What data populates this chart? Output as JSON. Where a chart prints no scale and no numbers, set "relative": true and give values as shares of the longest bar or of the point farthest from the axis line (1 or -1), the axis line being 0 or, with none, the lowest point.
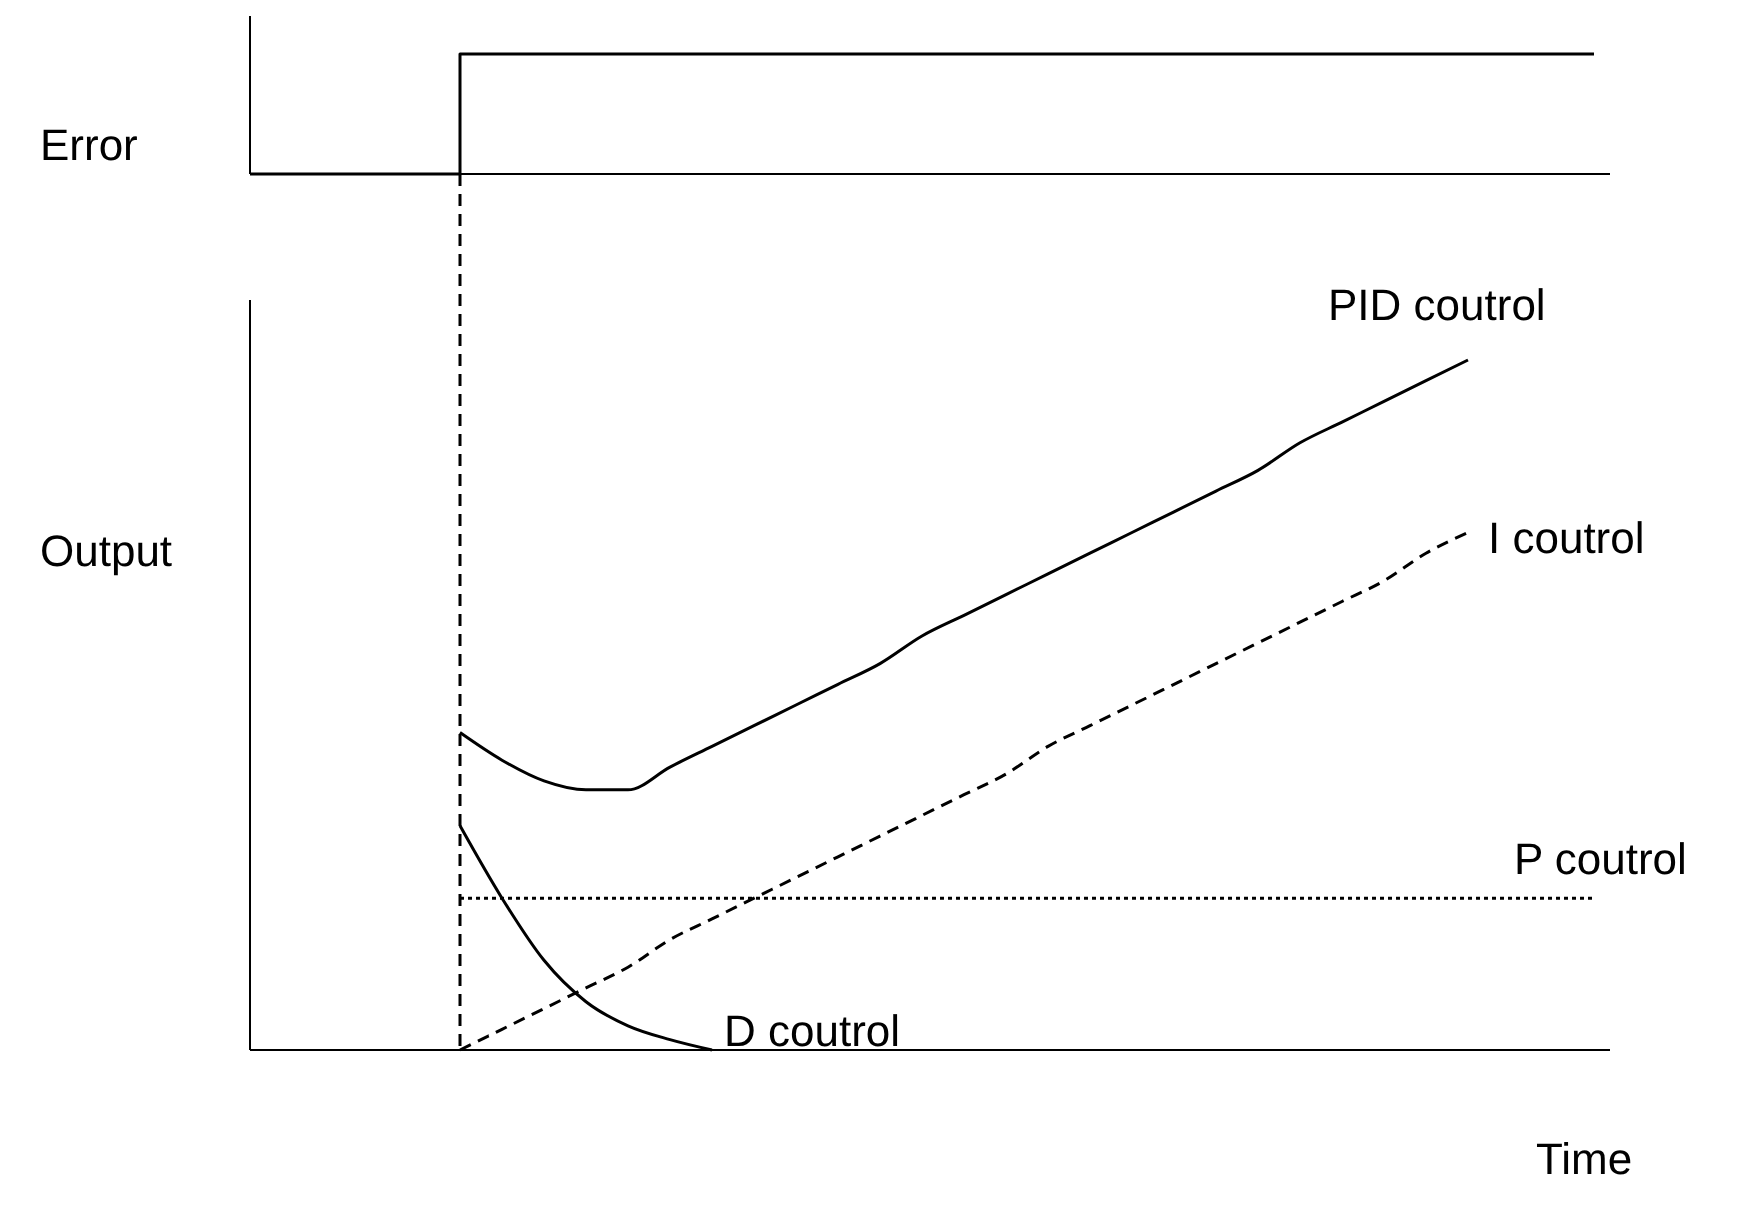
{
  "chart_data": [
    {
      "type": "step",
      "ylabel": "Error",
      "relative": true,
      "categories": [
        null,
        null,
        null,
        null,
        null,
        null,
        null,
        null,
        null,
        null,
        null,
        null,
        null,
        null,
        null,
        null,
        null,
        null,
        null,
        null,
        null,
        null,
        null,
        null,
        null,
        null,
        null,
        null,
        null,
        null,
        null,
        null,
        null
      ],
      "values": [
        0,
        0,
        0,
        0,
        0,
        1,
        1,
        1,
        1,
        1,
        1,
        1,
        1,
        1,
        1,
        1,
        1,
        1,
        1,
        1,
        1,
        1,
        1,
        1,
        1,
        1,
        1,
        1,
        1,
        1,
        1,
        1,
        1
      ],
      "color": "#000000"
    },
    {
      "type": "line",
      "ylabel": "Output",
      "xlabel": "Time",
      "relative": true,
      "categories": [
        null,
        null,
        null,
        null,
        null,
        null,
        null,
        null,
        null,
        null,
        null,
        null,
        null,
        null,
        null,
        null,
        null,
        null,
        null,
        null,
        null,
        null,
        null,
        null,
        null,
        null,
        null,
        null,
        null,
        null,
        null,
        null,
        null
      ],
      "series": [
        {
          "name": "PID coutrol",
          "color": "#000000",
          "line_style": "solid",
          "values": [
            null,
            null,
            null,
            null,
            null,
            0.46,
            0.42,
            0.39,
            0.377,
            0.377,
            0.41,
            0.44,
            0.47,
            0.5,
            0.53,
            0.56,
            0.6,
            0.63,
            0.66,
            0.69,
            0.72,
            0.75,
            0.78,
            0.81,
            0.84,
            0.88,
            0.91,
            0.94,
            0.97,
            1.0,
            null,
            null,
            null
          ]
        },
        {
          "name": "I coutrol",
          "color": "#000000",
          "line_style": "dashed",
          "values": [
            null,
            null,
            null,
            null,
            null,
            0,
            0.03,
            0.06,
            0.09,
            0.12,
            0.16,
            0.19,
            0.22,
            0.25,
            0.28,
            0.31,
            0.34,
            0.37,
            0.4,
            0.44,
            0.47,
            0.5,
            0.53,
            0.56,
            0.59,
            0.62,
            0.65,
            0.68,
            0.72,
            0.75,
            null,
            null,
            null
          ]
        },
        {
          "name": "P coutrol",
          "color": "#000000",
          "line_style": "dotted",
          "values": [
            null,
            null,
            null,
            null,
            null,
            0.22,
            0.22,
            0.22,
            0.22,
            0.22,
            0.22,
            0.22,
            0.22,
            0.22,
            0.22,
            0.22,
            0.22,
            0.22,
            0.22,
            0.22,
            0.22,
            0.22,
            0.22,
            0.22,
            0.22,
            0.22,
            0.22,
            0.22,
            0.22,
            0.22,
            0.22,
            0.22,
            0.22
          ]
        },
        {
          "name": "D coutrol",
          "color": "#000000",
          "line_style": "solid",
          "values": [
            null,
            null,
            null,
            null,
            null,
            0.325,
            0.22,
            0.13,
            0.07,
            0.035,
            0.015,
            0,
            null,
            null,
            null,
            null,
            null,
            null,
            null,
            null,
            null,
            null,
            null,
            null,
            null,
            null,
            null,
            null,
            null,
            null,
            null,
            null,
            null
          ]
        }
      ]
    }
  ]
}
